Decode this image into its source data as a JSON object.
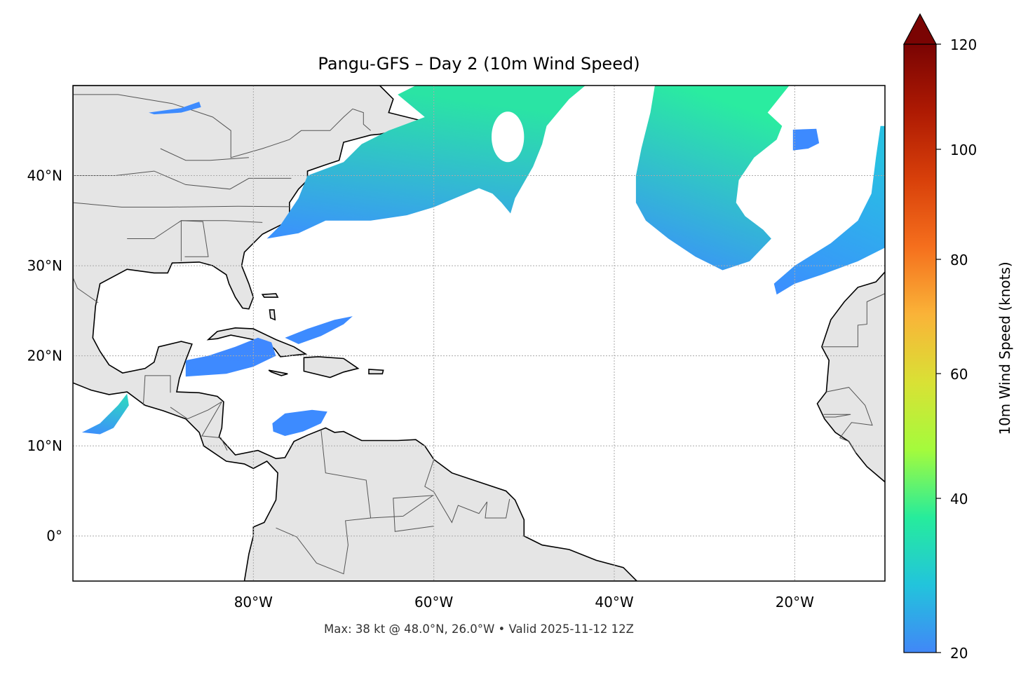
{
  "title": "Pangu-GFS – Day 2 (10m Wind Speed)",
  "footer": "Max: 38 kt @ 48.0°N, 26.0°W • Valid 2025-11-12 12Z",
  "map": {
    "projection": "PlateCarree",
    "lon_range": [
      -100,
      -10
    ],
    "lat_range": [
      -5,
      50
    ],
    "gridlines": true,
    "land_color": "#e5e5e5",
    "ocean_color": "#ffffff",
    "lon_ticks": [
      {
        "value": -80,
        "label": "80°W"
      },
      {
        "value": -60,
        "label": "60°W"
      },
      {
        "value": -40,
        "label": "40°W"
      },
      {
        "value": -20,
        "label": "20°W"
      }
    ],
    "lat_ticks": [
      {
        "value": 40,
        "label": "40°N"
      },
      {
        "value": 30,
        "label": "30°N"
      },
      {
        "value": 20,
        "label": "20°N"
      },
      {
        "value": 10,
        "label": "10°N"
      },
      {
        "value": 0,
        "label": "0°"
      }
    ],
    "wind_threshold_kt": 20,
    "max_wind": {
      "value_kt": 38,
      "lat": 48.0,
      "lon": -26.0
    }
  },
  "colorbar": {
    "label": "10m Wind Speed (knots)",
    "ticks": [
      20,
      40,
      60,
      80,
      100,
      120
    ],
    "extend": "max",
    "colormap": "turbo",
    "colors": [
      "#4187f7",
      "#22c4dc",
      "#26ec9c",
      "#a4fb3c",
      "#d9e135",
      "#fab338",
      "#f56f1d",
      "#d8400a",
      "#ae1a03",
      "#7a0403"
    ]
  }
}
